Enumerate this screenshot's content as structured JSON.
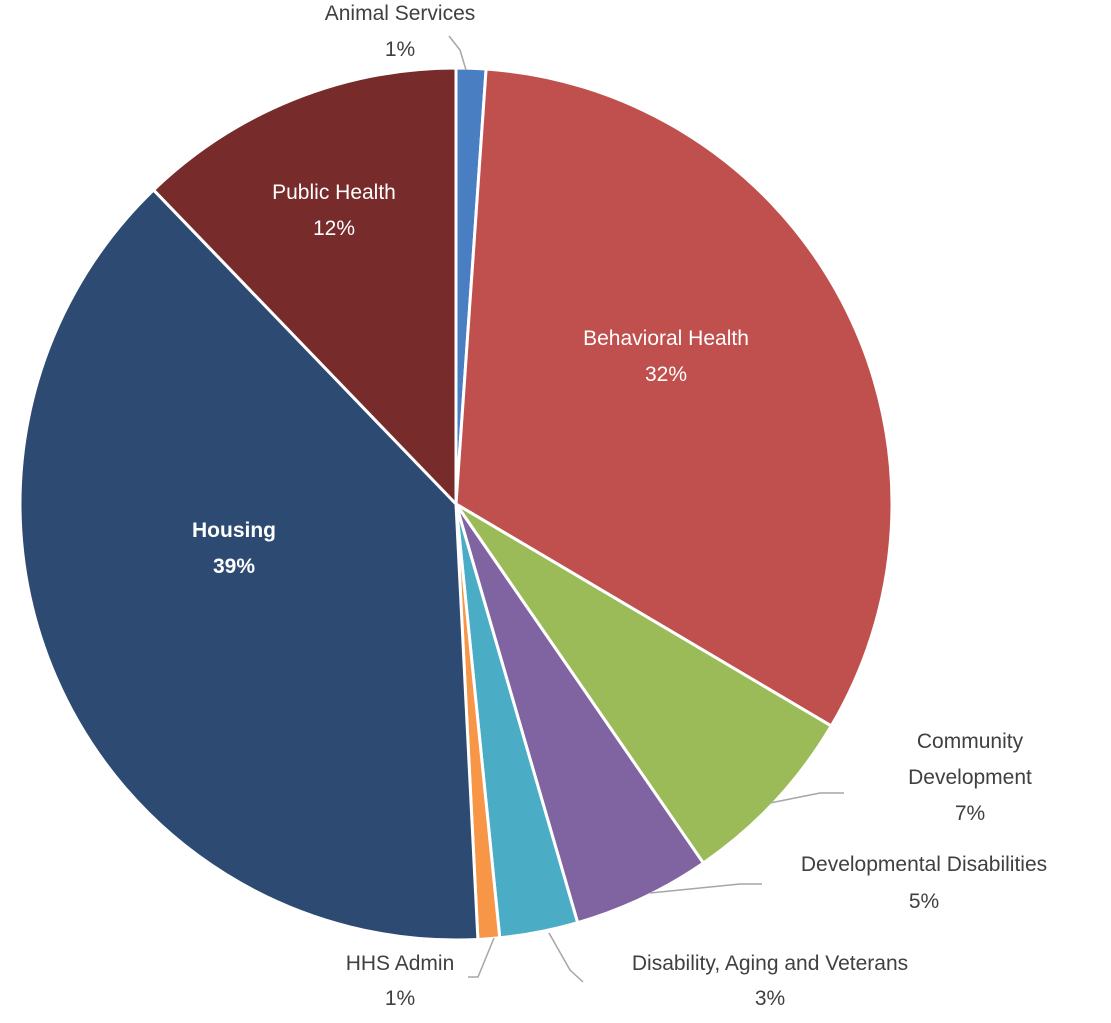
{
  "chart_data": {
    "type": "pie",
    "title": "",
    "start": "12 o'clock",
    "direction": "clockwise",
    "legend": "none",
    "slices": [
      {
        "label": "Animal Services",
        "percent_label": "1%",
        "value": 1.1,
        "color": "#4a7ec3",
        "label_style": "outside"
      },
      {
        "label": "Behavioral Health",
        "percent_label": "32%",
        "value": 32.4,
        "color": "#c0504d",
        "label_style": "inside"
      },
      {
        "label": "Community Development",
        "percent_label": "7%",
        "value": 6.9,
        "color": "#9bbb59",
        "label_style": "outside"
      },
      {
        "label": "Developmental Disabilities",
        "percent_label": "5%",
        "value": 5.1,
        "color": "#8064a2",
        "label_style": "outside"
      },
      {
        "label": "Disability, Aging and Veterans",
        "percent_label": "3%",
        "value": 2.9,
        "color": "#4bacc6",
        "label_style": "outside"
      },
      {
        "label": "HHS Admin",
        "percent_label": "1%",
        "value": 0.8,
        "color": "#f79646",
        "label_style": "outside"
      },
      {
        "label": "Housing",
        "percent_label": "39%",
        "value": 38.6,
        "color": "#2c4a72",
        "label_style": "inside"
      },
      {
        "label": "Public Health",
        "percent_label": "12%",
        "value": 12.2,
        "color": "#772b2a",
        "label_style": "inside"
      }
    ],
    "label_lines": {
      "Animal Services": [
        "Animal",
        "Services",
        "1%"
      ],
      "Community Development": [
        "Community",
        "Development",
        "7%"
      ],
      "Developmental Disabilities": [
        "Developmental Disabilities",
        "5%"
      ],
      "Disability, Aging and Veterans": [
        "Disability, Aging and Veterans",
        "3%"
      ],
      "HHS Admin": [
        "HHS Admin",
        "1%"
      ]
    }
  }
}
